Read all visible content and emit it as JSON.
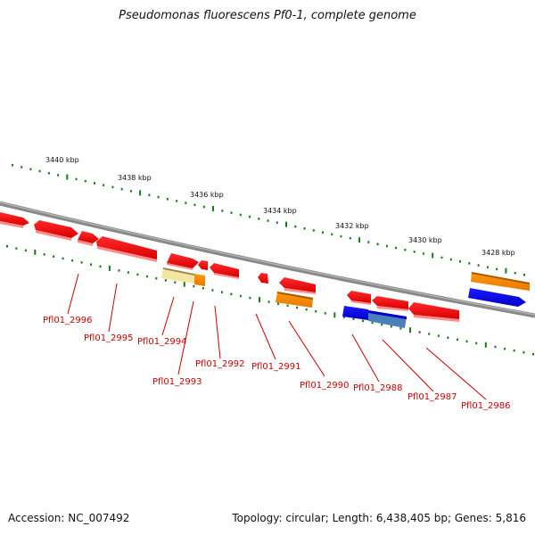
{
  "title": "Pseudomonas fluorescens Pf0-1, complete genome",
  "footer": {
    "accession": "Accession: NC_007492",
    "info": "Topology: circular; Length: 6,438,405 bp; Genes: 5,816"
  },
  "colors": {
    "backbone": "#808080",
    "tick": "#1a7a1a",
    "gene": "#ff0000",
    "label": "#cc0000",
    "orange": "#ff9900",
    "pale": "#f0e090",
    "blue": "#0000ee",
    "steel": "#4682b4"
  },
  "scale_labels": [
    "3440 kbp",
    "3438 kbp",
    "3436 kbp",
    "3434 kbp",
    "3432 kbp",
    "3430 kbp",
    "3428 kbp"
  ],
  "gene_labels": [
    "Pfl01_2996",
    "Pfl01_2995",
    "Pfl01_2994",
    "Pfl01_2993",
    "Pfl01_2992",
    "Pfl01_2991",
    "Pfl01_2990",
    "Pfl01_2988",
    "Pfl01_2987",
    "Pfl01_2986"
  ]
}
